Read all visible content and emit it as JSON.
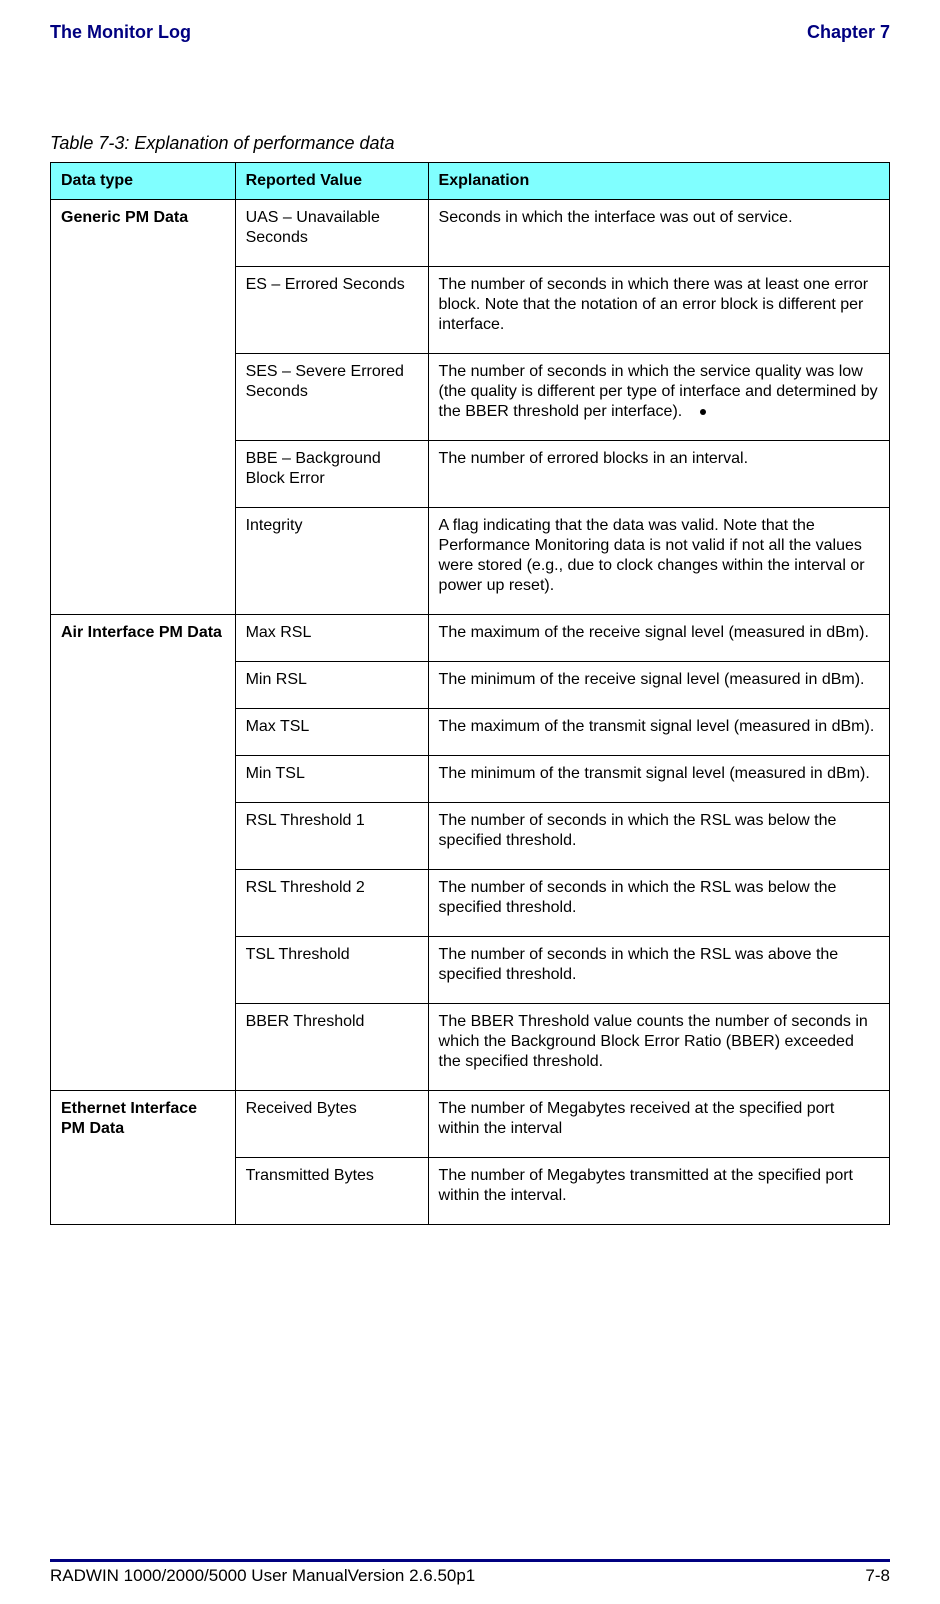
{
  "header": {
    "left": "The Monitor Log",
    "right": "Chapter 7"
  },
  "caption": "Table 7-3: Explanation of performance data",
  "table": {
    "headers": {
      "c1": "Data type",
      "c2": "Reported Value",
      "c3": "Explanation"
    },
    "sections": [
      {
        "type": "Generic PM Data",
        "rows": [
          {
            "rv": "UAS – Unavailable Seconds",
            "ex": "Seconds in which the interface was out of service."
          },
          {
            "rv": "ES – Errored Seconds",
            "ex": "The number of seconds in which there was at least one error block. Note that the notation of an error block is different per interface."
          },
          {
            "rv": "SES – Severe Errored Seconds",
            "ex": "The number of seconds in which the service quality was low (the quality is different per type of interface and determined by the BBER threshold per interface)."
          },
          {
            "rv": "BBE – Background Block Error",
            "ex": "The number of errored blocks in an interval."
          },
          {
            "rv": "Integrity",
            "ex": "A flag indicating that the data was valid. Note that the Performance Monitoring data is not valid if not all the values were stored (e.g., due to clock changes within the interval or power up reset)."
          }
        ]
      },
      {
        "type": "Air Interface PM Data",
        "rows": [
          {
            "rv": "Max RSL",
            "ex": "The maximum of the receive signal level (measured in dBm)."
          },
          {
            "rv": "Min RSL",
            "ex": "The minimum of the receive signal level (measured in dBm)."
          },
          {
            "rv": "Max TSL",
            "ex": "The maximum of the transmit signal level (measured in dBm)."
          },
          {
            "rv": "Min TSL",
            "ex": "The minimum of the transmit signal level (measured in dBm)."
          },
          {
            "rv": "RSL Threshold 1",
            "ex": "The number of seconds in which the RSL was below the specified threshold."
          },
          {
            "rv": "RSL Threshold 2",
            "ex": "The number of seconds in which the RSL was below the specified threshold."
          },
          {
            "rv": "TSL Threshold",
            "ex": "The number of seconds in which the RSL was above the specified threshold."
          },
          {
            "rv": "BBER Threshold",
            "ex": "The BBER Threshold value counts the number of seconds in which the Background Block Error Ratio (BBER) exceeded the specified threshold."
          }
        ]
      },
      {
        "type": "Ethernet Interface PM Data",
        "rows": [
          {
            "rv": "Received Bytes",
            "ex": "The number of Megabytes received at the specified port within the interval"
          },
          {
            "rv": "Transmitted Bytes",
            "ex": "The number of Megabytes transmitted at the specified port within the interval."
          }
        ]
      }
    ]
  },
  "footer": {
    "left": "RADWIN 1000/2000/5000 User ManualVersion  2.6.50p1",
    "right": "7-8"
  }
}
